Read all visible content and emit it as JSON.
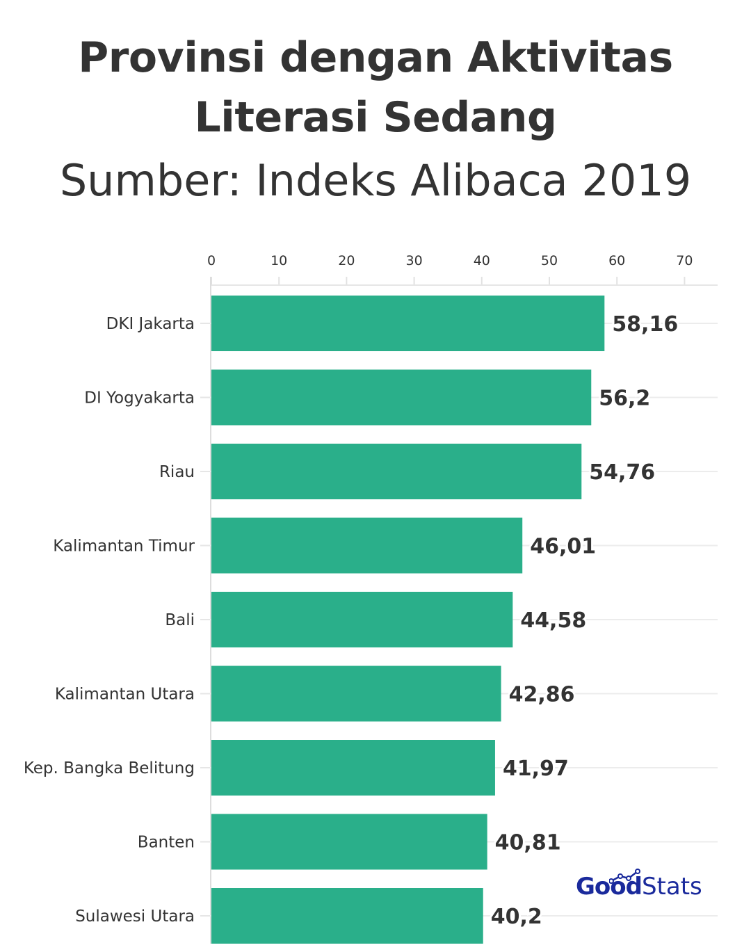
{
  "title": "Provinsi dengan Aktivitas Literasi Sedang",
  "subtitle": "Sumber: Indeks Alibaca 2019",
  "logo": {
    "bold": "Good",
    "light": "Stats",
    "icon": "trend-line-icon"
  },
  "chart_data": {
    "type": "bar",
    "orientation": "horizontal",
    "categories": [
      "DKI Jakarta",
      "DI Yogyakarta",
      "Riau",
      "Kalimantan Timur",
      "Bali",
      "Kalimantan Utara",
      "Kep. Bangka Belitung",
      "Banten",
      "Sulawesi Utara"
    ],
    "values": [
      58.16,
      56.2,
      54.76,
      46.01,
      44.58,
      42.86,
      41.97,
      40.81,
      40.2
    ],
    "value_labels": [
      "58,16",
      "56,2",
      "54,76",
      "46,01",
      "44,58",
      "42,86",
      "41,97",
      "40,81",
      "40,2"
    ],
    "x_ticks": [
      0,
      10,
      20,
      30,
      40,
      50,
      60,
      70
    ],
    "xlim": [
      0,
      75
    ],
    "axis_position": "top",
    "grid": true,
    "bar_color": "#2aaf8a"
  }
}
